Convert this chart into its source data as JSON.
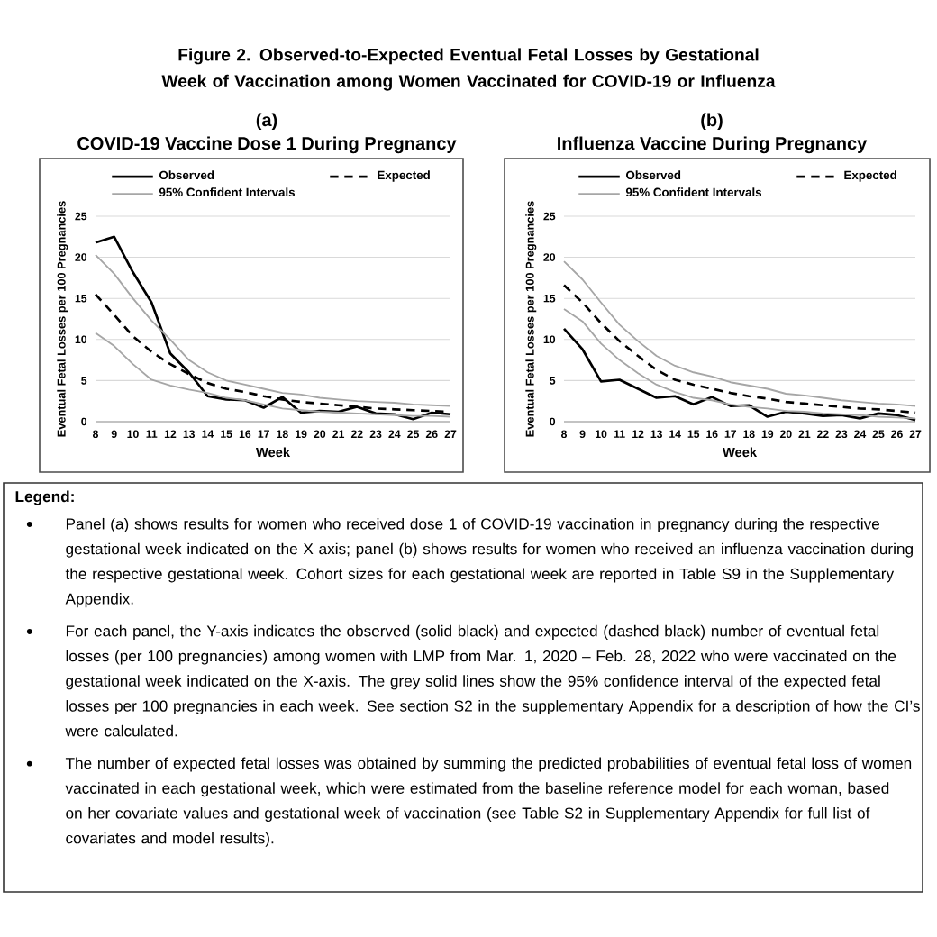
{
  "chart_data": [
    {
      "type": "other",
      "title": "Figure 2. Observed-to-Expected Eventual Fetal Losses by Gestational Week of Vaccination among Women Vaccinated for COVID-19 or Influenza"
    },
    {
      "type": "line",
      "title": "(a)",
      "subtitle": "COVID-19 Vaccine Dose 1 During Pregnancy",
      "xlabel": "Week",
      "ylabel": "Eventual Fetal Losses per 100 Pregnancies",
      "x": [
        8,
        9,
        10,
        11,
        12,
        13,
        14,
        15,
        16,
        17,
        18,
        19,
        20,
        21,
        22,
        23,
        24,
        25,
        26,
        27
      ],
      "xlim": [
        8,
        27
      ],
      "xticks": [
        8,
        9,
        10,
        11,
        12,
        13,
        14,
        15,
        16,
        17,
        18,
        19,
        20,
        21,
        22,
        23,
        24,
        25,
        26,
        27
      ],
      "ylim": [
        0,
        25
      ],
      "yticks": [
        0,
        5,
        10,
        15,
        20,
        25
      ],
      "grid": "y",
      "legend": "top",
      "series": [
        {
          "name": "Observed",
          "color": "#000000",
          "line_style": "solid",
          "values": [
            21.8,
            22.5,
            18.2,
            14.5,
            8.3,
            6,
            3.1,
            2.7,
            2.6,
            1.7,
            3.0,
            1.1,
            1.3,
            1.2,
            1.8,
            1.0,
            0.9,
            0.3,
            1.1,
            0.9
          ]
        },
        {
          "name": "Expected",
          "color": "#000000",
          "line_style": "dashed",
          "values": [
            15.5,
            13,
            10.4,
            8.5,
            7.0,
            5.8,
            4.7,
            4.0,
            3.6,
            3.1,
            2.7,
            2.4,
            2.2,
            2.0,
            1.8,
            1.6,
            1.5,
            1.4,
            1.3,
            1.2
          ]
        },
        {
          "name": "95% Confident Intervals",
          "color": "#a6a6a6",
          "line_style": "solid",
          "values": [
            20.3,
            18,
            15,
            12.3,
            10,
            7.5,
            6,
            5,
            4.5,
            4,
            3.5,
            3.3,
            2.9,
            2.7,
            2.5,
            2.4,
            2.3,
            2.1,
            2.0,
            1.9
          ]
        },
        {
          "color": "#a6a6a6",
          "line_style": "solid",
          "values": [
            10.8,
            9.2,
            7,
            5.1,
            4.4,
            3.9,
            3.5,
            2.9,
            2.6,
            2.1,
            1.6,
            1.4,
            1.2,
            1.1,
            1.0,
            0.9,
            0.8,
            0.7,
            0.7,
            0.6
          ]
        }
      ]
    },
    {
      "type": "line",
      "title": "(b)",
      "subtitle": "Influenza Vaccine During Pregnancy",
      "xlabel": "Week",
      "ylabel": "Eventual Fetal Losses per 100 Pregnancies",
      "x": [
        8,
        9,
        10,
        11,
        12,
        13,
        14,
        15,
        16,
        17,
        18,
        19,
        20,
        21,
        22,
        23,
        24,
        25,
        26,
        27
      ],
      "xlim": [
        8,
        27
      ],
      "xticks": [
        8,
        9,
        10,
        11,
        12,
        13,
        14,
        15,
        16,
        17,
        18,
        19,
        20,
        21,
        22,
        23,
        24,
        25,
        26,
        27
      ],
      "ylim": [
        0,
        25
      ],
      "yticks": [
        0,
        5,
        10,
        15,
        20,
        25
      ],
      "grid": "y",
      "legend": "top",
      "series": [
        {
          "name": "Observed",
          "color": "#000000",
          "line_style": "solid",
          "values": [
            11.3,
            8.8,
            4.9,
            5.1,
            4,
            2.9,
            3.1,
            2.1,
            3.0,
            1.9,
            2.0,
            0.6,
            1.2,
            1.0,
            0.7,
            0.8,
            0.4,
            1.0,
            0.8,
            0.2
          ]
        },
        {
          "name": "Expected",
          "color": "#000000",
          "line_style": "dashed",
          "values": [
            16.6,
            14.5,
            12,
            9.8,
            8,
            6.3,
            5.1,
            4.5,
            4.0,
            3.5,
            3.1,
            2.8,
            2.4,
            2.2,
            2.0,
            1.8,
            1.6,
            1.5,
            1.3,
            1.1
          ]
        },
        {
          "name": "95% Confident Intervals",
          "color": "#a6a6a6",
          "line_style": "solid",
          "values": [
            19.5,
            17.3,
            14.5,
            11.8,
            9.8,
            8,
            6.8,
            6,
            5.5,
            4.8,
            4.4,
            4.0,
            3.4,
            3.2,
            2.9,
            2.6,
            2.4,
            2.2,
            2.1,
            1.9
          ]
        },
        {
          "color": "#a6a6a6",
          "line_style": "solid",
          "values": [
            13.7,
            12.2,
            9.5,
            7.5,
            5.9,
            4.5,
            3.6,
            2.9,
            2.6,
            2.1,
            1.8,
            1.6,
            1.3,
            1.2,
            1.0,
            0.9,
            0.8,
            0.6,
            0.5,
            0.4
          ]
        }
      ]
    },
    {
      "type": "other",
      "title": "Legend:",
      "annotations": [
        "Panel (a) shows results for women who received dose 1 of COVID-19 vaccination in pregnancy during the respective gestational week indicated on the X axis; panel (b) shows results for women who received an influenza vaccination during the respective gestational week. Cohort sizes for each gestational week are reported in Table S9 in the Supplementary Appendix.",
        "For each panel, the Y-axis indicates the observed (solid black) and expected (dashed black) number of eventual fetal losses (per 100 pregnancies) among women with LMP from Mar. 1, 2020 – Feb. 28, 2022 who were vaccinated on the gestational week indicated on the X-axis. The grey solid lines show the 95% confidence interval of the expected fetal losses per 100 pregnancies in each week. See section S2 in the supplementary Appendix for a description of how the CI’s were calculated.",
        "The number of expected fetal losses was obtained by summing the predicted probabilities of eventual fetal loss of women vaccinated in each gestational week, which were estimated from the baseline reference model for each woman, based on her covariate values and gestational week of vaccination (see Table S2 in Supplementary Appendix for full list of covariates and model results)."
      ]
    }
  ]
}
